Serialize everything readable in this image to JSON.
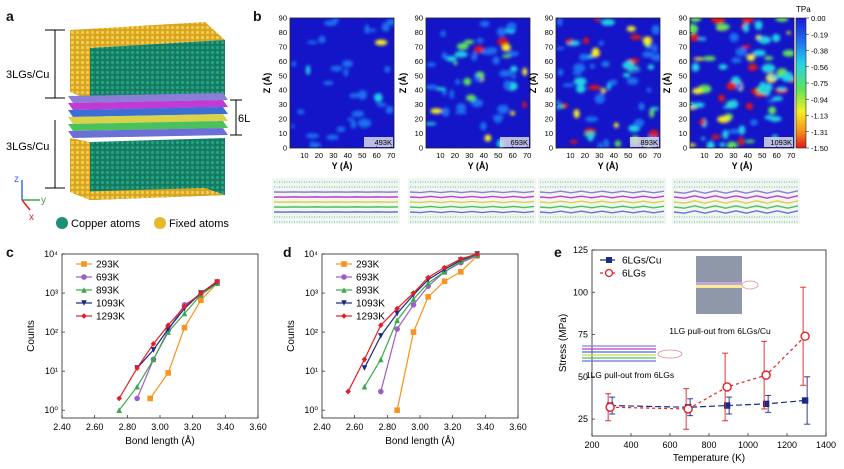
{
  "panels": {
    "a": {
      "label": "a",
      "top_layer": "3LGs/Cu",
      "middle_layer": "6LGs",
      "bottom_layer": "3LGs/Cu",
      "axes": {
        "z": "z",
        "y": "y",
        "x": "x"
      },
      "legend": {
        "copper": "Copper atoms",
        "fixed": "Fixed atoms"
      },
      "colors": {
        "copper": "#1f8f74",
        "fixed": "#e8b72a"
      }
    },
    "b": {
      "label": "b",
      "colorbar_unit": "TPa",
      "colorbar_ticks": [
        "0.00",
        "-0.19",
        "-0.38",
        "-0.56",
        "-0.75",
        "-0.94",
        "-1.13",
        "-1.31",
        "-1.50"
      ],
      "maps": [
        {
          "temp": "493K",
          "hot": 0.1
        },
        {
          "temp": "693K",
          "hot": 0.45
        },
        {
          "temp": "893K",
          "hot": 0.7
        },
        {
          "temp": "1093K",
          "hot": 1.0
        }
      ],
      "ylabel": "Z (Å)",
      "xlabel": "Y (Å)",
      "yticks": [
        "0",
        "10",
        "20",
        "30",
        "40",
        "50",
        "60",
        "70",
        "80",
        "90"
      ],
      "xticks": [
        "10",
        "20",
        "30",
        "40",
        "50",
        "60",
        "70"
      ]
    },
    "c": {
      "label": "c"
    },
    "d": {
      "label": "d"
    },
    "e": {
      "label": "e",
      "inset1": "1LG pull-out from 6LGs/Cu",
      "inset2": "1LG pull-out from 6LGs"
    }
  },
  "chart_data": [
    {
      "id": "c",
      "type": "line",
      "xlabel": "Bond length (Å)",
      "ylabel": "Counts",
      "xlim": [
        2.4,
        3.6
      ],
      "ylim_log10": [
        -0.2,
        4
      ],
      "xticks": [
        "2.40",
        "2.60",
        "2.80",
        "3.00",
        "3.20",
        "3.40",
        "3.60"
      ],
      "yticks": [
        "10⁰",
        "10¹",
        "10²",
        "10³",
        "10⁴"
      ],
      "series": [
        {
          "name": "293K",
          "color": "#f7941d",
          "marker": "square",
          "x": [
            2.94,
            3.05,
            3.15,
            3.25,
            3.35
          ],
          "y": [
            2,
            9,
            130,
            650,
            1800
          ]
        },
        {
          "name": "693K",
          "color": "#a05cc6",
          "marker": "circle",
          "x": [
            2.86,
            2.96,
            3.05,
            3.15,
            3.25,
            3.35
          ],
          "y": [
            2,
            20,
            110,
            500,
            900,
            1800
          ]
        },
        {
          "name": "893K",
          "color": "#39a94a",
          "marker": "triangle",
          "x": [
            2.75,
            2.86,
            2.96,
            3.05,
            3.15,
            3.25,
            3.35
          ],
          "y": [
            1,
            4,
            20,
            100,
            300,
            900,
            1800
          ]
        },
        {
          "name": "1093K",
          "color": "#1c2a84",
          "marker": "triangle-down",
          "x": [
            2.86,
            2.96,
            3.05,
            3.15,
            3.25,
            3.35
          ],
          "y": [
            12,
            35,
            120,
            400,
            1000,
            1900
          ]
        },
        {
          "name": "1293K",
          "color": "#e31e24",
          "marker": "diamond",
          "x": [
            2.75,
            2.86,
            2.96,
            3.05,
            3.15,
            3.25,
            3.35
          ],
          "y": [
            2,
            12,
            50,
            150,
            450,
            1000,
            2000
          ]
        }
      ]
    },
    {
      "id": "d",
      "type": "line",
      "xlabel": "Bond length (Å)",
      "ylabel": "Counts",
      "xlim": [
        2.4,
        3.6
      ],
      "ylim_log10": [
        -0.2,
        4
      ],
      "xticks": [
        "2.40",
        "2.60",
        "2.80",
        "3.00",
        "3.20",
        "3.40",
        "3.60"
      ],
      "yticks": [
        "10⁰",
        "10¹",
        "10²",
        "10³",
        "10⁴"
      ],
      "series": [
        {
          "name": "293K",
          "color": "#f7941d",
          "marker": "square",
          "x": [
            2.86,
            2.96,
            3.05,
            3.15,
            3.25,
            3.35
          ],
          "y": [
            1,
            100,
            800,
            2000,
            3500,
            9000
          ]
        },
        {
          "name": "693K",
          "color": "#a05cc6",
          "marker": "circle",
          "x": [
            2.76,
            2.86,
            2.96,
            3.05,
            3.15,
            3.25,
            3.35
          ],
          "y": [
            3,
            120,
            500,
            1500,
            3500,
            6000,
            9000
          ]
        },
        {
          "name": "893K",
          "color": "#39a94a",
          "marker": "triangle",
          "x": [
            2.66,
            2.76,
            2.86,
            2.96,
            3.05,
            3.15,
            3.25,
            3.35
          ],
          "y": [
            4,
            20,
            200,
            700,
            1800,
            3500,
            6500,
            9500
          ]
        },
        {
          "name": "1093K",
          "color": "#1c2a84",
          "marker": "triangle-down",
          "x": [
            2.66,
            2.76,
            2.86,
            2.96,
            3.05,
            3.15,
            3.25,
            3.35
          ],
          "y": [
            12,
            80,
            300,
            900,
            2200,
            4000,
            7000,
            10000
          ]
        },
        {
          "name": "1293K",
          "color": "#e31e24",
          "marker": "diamond",
          "x": [
            2.56,
            2.66,
            2.76,
            2.86,
            2.96,
            3.05,
            3.15,
            3.25,
            3.35
          ],
          "y": [
            3,
            20,
            150,
            400,
            1000,
            2500,
            4500,
            7500,
            10000
          ]
        }
      ]
    },
    {
      "id": "e",
      "type": "line",
      "xlabel": "Temperature (K)",
      "ylabel": "Stress (MPa)",
      "xlim": [
        200,
        1400
      ],
      "ylim": [
        15,
        125
      ],
      "xticks": [
        200,
        400,
        600,
        800,
        1000,
        1200,
        1400
      ],
      "yticks": [
        25,
        50,
        75,
        100,
        125
      ],
      "series": [
        {
          "name": "6LGs/Cu",
          "color": "#1c2a84",
          "marker": "square",
          "dash": "6 3",
          "x": [
            293,
            693,
            893,
            1093,
            1293
          ],
          "y": [
            33,
            32,
            33,
            34,
            36
          ],
          "err": [
            5,
            5,
            5,
            5,
            14
          ]
        },
        {
          "name": "6LGs",
          "color": "#e31e24",
          "marker": "circle",
          "dash": "3 3",
          "x": [
            293,
            693,
            893,
            1093,
            1293
          ],
          "y": [
            32,
            31,
            44,
            51,
            74
          ],
          "err": [
            8,
            12,
            20,
            20,
            29
          ]
        }
      ]
    }
  ]
}
